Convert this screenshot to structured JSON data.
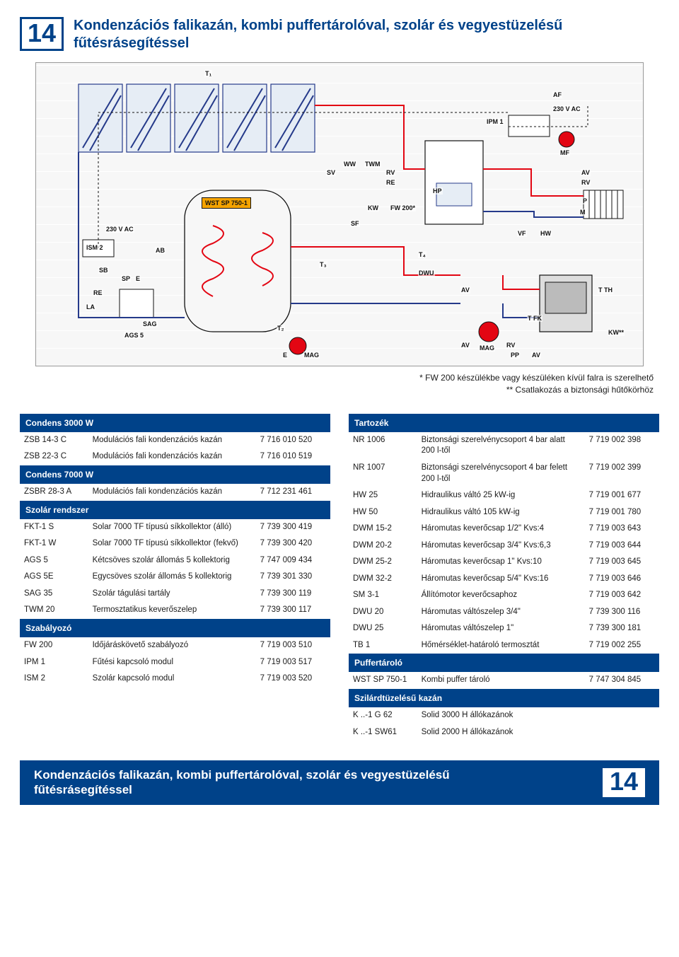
{
  "accent": "#004289",
  "pageNumber": "14",
  "title": "Kondenzációs falikazán, kombi puffertárolóval, szolár és vegyestüzelésű fűtésrásegítéssel",
  "notes": [
    "* FW 200 készülékbe vagy készüléken kívül falra is szerelhető",
    "** Csatlakozás a biztonsági hűtőkörhöz"
  ],
  "diagramLabels": {
    "T1": "T₁",
    "T2": "T₂",
    "T3": "T₃",
    "T4": "T₄",
    "AF": "AF",
    "IPM1": "IPM 1",
    "V230": "230 V AC",
    "MF": "MF",
    "AV": "AV",
    "RV": "RV",
    "P": "P",
    "M": "M",
    "SV": "SV",
    "WW": "WW",
    "TWM": "TWM",
    "RE": "RE",
    "HP": "HP",
    "WST": "WST SP 750-1",
    "KW": "KW",
    "FW200": "FW 200*",
    "SF": "SF",
    "VF": "VF",
    "HW": "HW",
    "ISM2": "ISM 2",
    "AB": "AB",
    "SB": "SB",
    "SP": "SP",
    "E": "E",
    "LA": "LA",
    "SAG": "SAG",
    "AGS5": "AGS 5",
    "DWU": "DWU",
    "MAG": "MAG",
    "PP": "PP",
    "TFK": "T FK",
    "TTH": "T TH",
    "KWss": "KW**"
  },
  "leftTable": [
    {
      "section": "Condens 3000 W"
    },
    {
      "c": [
        "ZSB 14-3 C",
        "Modulációs fali kondenzációs kazán",
        "7 716 010 520"
      ]
    },
    {
      "c": [
        "ZSB 22-3 C",
        "Modulációs fali kondenzációs kazán",
        "7 716 010 519"
      ]
    },
    {
      "section": "Condens 7000 W"
    },
    {
      "c": [
        "ZSBR 28-3 A",
        "Modulációs fali kondenzációs kazán",
        "7 712 231 461"
      ]
    },
    {
      "section": "Szolár rendszer"
    },
    {
      "c": [
        "FKT-1 S",
        "Solar 7000 TF típusú síkkollektor (álló)",
        "7 739 300 419"
      ]
    },
    {
      "c": [
        "FKT-1 W",
        "Solar 7000 TF típusú síkkollektor (fekvő)",
        "7 739 300 420"
      ]
    },
    {
      "c": [
        "AGS 5",
        "Kétcsöves szolár állomás 5 kollektorig",
        "7 747 009 434"
      ]
    },
    {
      "c": [
        "AGS 5E",
        "Egycsöves szolár állomás 5 kollektorig",
        "7 739 301 330"
      ]
    },
    {
      "c": [
        "SAG 35",
        "Szolár tágulási tartály",
        "7 739 300 119"
      ]
    },
    {
      "c": [
        "TWM 20",
        "Termosztatikus keverőszelep",
        "7 739 300 117"
      ]
    },
    {
      "section": "Szabályozó"
    },
    {
      "c": [
        "FW 200",
        "Időjáráskövető szabályozó",
        "7 719 003 510"
      ]
    },
    {
      "c": [
        "IPM 1",
        "Fűtési kapcsoló modul",
        "7 719 003 517"
      ]
    },
    {
      "c": [
        "ISM 2",
        "Szolár kapcsoló modul",
        "7 719 003 520"
      ]
    }
  ],
  "rightTable": [
    {
      "section": "Tartozék"
    },
    {
      "c": [
        "NR 1006",
        "Biztonsági szerelvénycsoport 4 bar alatt 200 l-től",
        "7 719 002 398"
      ]
    },
    {
      "c": [
        "NR 1007",
        "Biztonsági szerelvénycsoport 4 bar felett 200 l-től",
        "7 719 002 399"
      ]
    },
    {
      "c": [
        "HW 25",
        "Hidraulikus váltó 25 kW-ig",
        "7 719 001 677"
      ]
    },
    {
      "c": [
        "HW 50",
        "Hidraulikus váltó 105 kW-ig",
        "7 719 001 780"
      ]
    },
    {
      "c": [
        "DWM 15-2",
        "Háromutas keverőcsap 1/2\" Kvs:4",
        "7 719 003 643"
      ]
    },
    {
      "c": [
        "DWM 20-2",
        "Háromutas keverőcsap 3/4\" Kvs:6,3",
        "7 719 003 644"
      ]
    },
    {
      "c": [
        "DWM 25-2",
        "Háromutas keverőcsap 1\" Kvs:10",
        "7 719 003 645"
      ]
    },
    {
      "c": [
        "DWM 32-2",
        "Háromutas keverőcsap 5/4\" Kvs:16",
        "7 719 003 646"
      ]
    },
    {
      "c": [
        "SM 3-1",
        "Állítómotor keverőcsaphoz",
        "7 719 003 642"
      ]
    },
    {
      "c": [
        "DWU 20",
        "Háromutas váltószelep 3/4\"",
        "7 739 300 116"
      ]
    },
    {
      "c": [
        "DWU 25",
        "Háromutas váltószelep 1\"",
        "7 739 300 181"
      ]
    },
    {
      "c": [
        "TB 1",
        "Hőmérséklet-határoló termosztát",
        "7 719 002 255"
      ]
    },
    {
      "section": "Puffertároló"
    },
    {
      "c": [
        "WST SP 750-1",
        "Kombi puffer tároló",
        "7 747 304 845"
      ]
    },
    {
      "section": "Szilárdtüzelésű kazán"
    },
    {
      "c": [
        "K ..-1 G 62",
        "Solid 3000 H állókazánok",
        ""
      ]
    },
    {
      "c": [
        "K ..-1 SW61",
        "Solid 2000 H állókazánok",
        ""
      ]
    }
  ],
  "footerTitle": "Kondenzációs falikazán, kombi puffertárolóval, szolár és vegyestüzelésű fűtésrásegítéssel"
}
